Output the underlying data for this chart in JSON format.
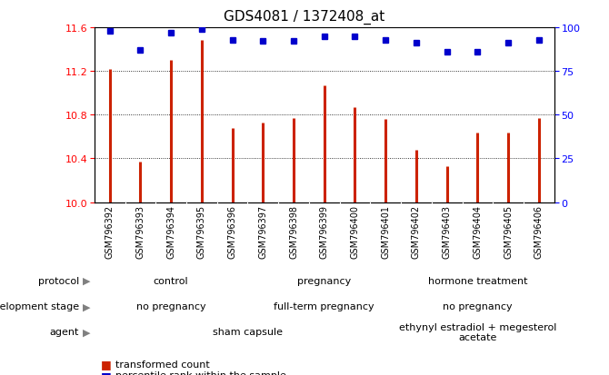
{
  "title": "GDS4081 / 1372408_at",
  "samples": [
    "GSM796392",
    "GSM796393",
    "GSM796394",
    "GSM796395",
    "GSM796396",
    "GSM796397",
    "GSM796398",
    "GSM796399",
    "GSM796400",
    "GSM796401",
    "GSM796402",
    "GSM796403",
    "GSM796404",
    "GSM796405",
    "GSM796406"
  ],
  "transformed_count": [
    11.22,
    10.37,
    11.3,
    11.48,
    10.68,
    10.73,
    10.77,
    11.07,
    10.87,
    10.76,
    10.48,
    10.33,
    10.64,
    10.64,
    10.77
  ],
  "percentile_rank": [
    98,
    87,
    97,
    99,
    93,
    92,
    92,
    95,
    95,
    93,
    91,
    86,
    86,
    91,
    93
  ],
  "ylim_left": [
    10,
    11.6
  ],
  "ylim_right": [
    0,
    100
  ],
  "yticks_left": [
    10,
    10.4,
    10.8,
    11.2,
    11.6
  ],
  "yticks_right": [
    0,
    25,
    50,
    75,
    100
  ],
  "bar_color": "#cc2200",
  "dot_color": "#0000cc",
  "protocol_groups": [
    "control",
    "pregnancy",
    "hormone treatment"
  ],
  "protocol_ranges": [
    [
      0,
      4
    ],
    [
      5,
      9
    ],
    [
      10,
      14
    ]
  ],
  "protocol_colors": [
    "#bbeebb",
    "#77cc77",
    "#55cc55"
  ],
  "dev_stage_groups": [
    "no pregnancy",
    "full-term pregnancy",
    "no pregnancy"
  ],
  "dev_stage_ranges": [
    [
      0,
      4
    ],
    [
      5,
      9
    ],
    [
      10,
      14
    ]
  ],
  "dev_stage_colors": [
    "#ccccff",
    "#9999dd",
    "#ccccff"
  ],
  "agent_groups": [
    "sham capsule",
    "ethynyl estradiol + megesterol\nacetate"
  ],
  "agent_ranges": [
    [
      0,
      9
    ],
    [
      10,
      14
    ]
  ],
  "agent_colors": [
    "#ffcccc",
    "#ee8888"
  ],
  "row_labels": [
    "protocol",
    "development stage",
    "agent"
  ],
  "xtick_bg": "#dddddd"
}
